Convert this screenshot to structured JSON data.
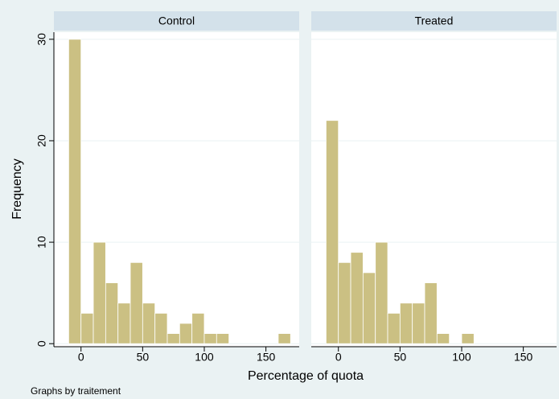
{
  "chart_data": [
    {
      "type": "histogram",
      "title": "Control",
      "bins": [
        -10,
        0,
        10,
        20,
        30,
        40,
        50,
        60,
        70,
        80,
        90,
        100,
        110,
        120,
        130,
        140,
        150,
        160,
        170
      ],
      "values": [
        30,
        3,
        10,
        6,
        4,
        8,
        4,
        3,
        1,
        2,
        3,
        1,
        1,
        0,
        0,
        0,
        0,
        1
      ],
      "color": "#cbc083",
      "xlim": [
        -22,
        177
      ],
      "ylim": [
        -0.3,
        30.7
      ],
      "xticks": [
        0,
        50,
        100,
        150
      ],
      "yticks": [
        0,
        10,
        20,
        30
      ],
      "grid": true
    },
    {
      "type": "histogram",
      "title": "Treated",
      "bins": [
        -10,
        0,
        10,
        20,
        30,
        40,
        50,
        60,
        70,
        80,
        90,
        100,
        110
      ],
      "values": [
        22,
        8,
        9,
        7,
        10,
        3,
        4,
        4,
        6,
        1,
        0,
        1
      ],
      "color": "#cbc083",
      "xlim": [
        -22,
        177
      ],
      "ylim": [
        -0.3,
        30.7
      ],
      "xticks": [
        0,
        50,
        100,
        150
      ],
      "yticks": [
        0,
        10,
        20,
        30
      ],
      "grid": true
    }
  ],
  "x_label": "Percentage of quota",
  "y_label": "Frequency",
  "note": "Graphs by traitement"
}
